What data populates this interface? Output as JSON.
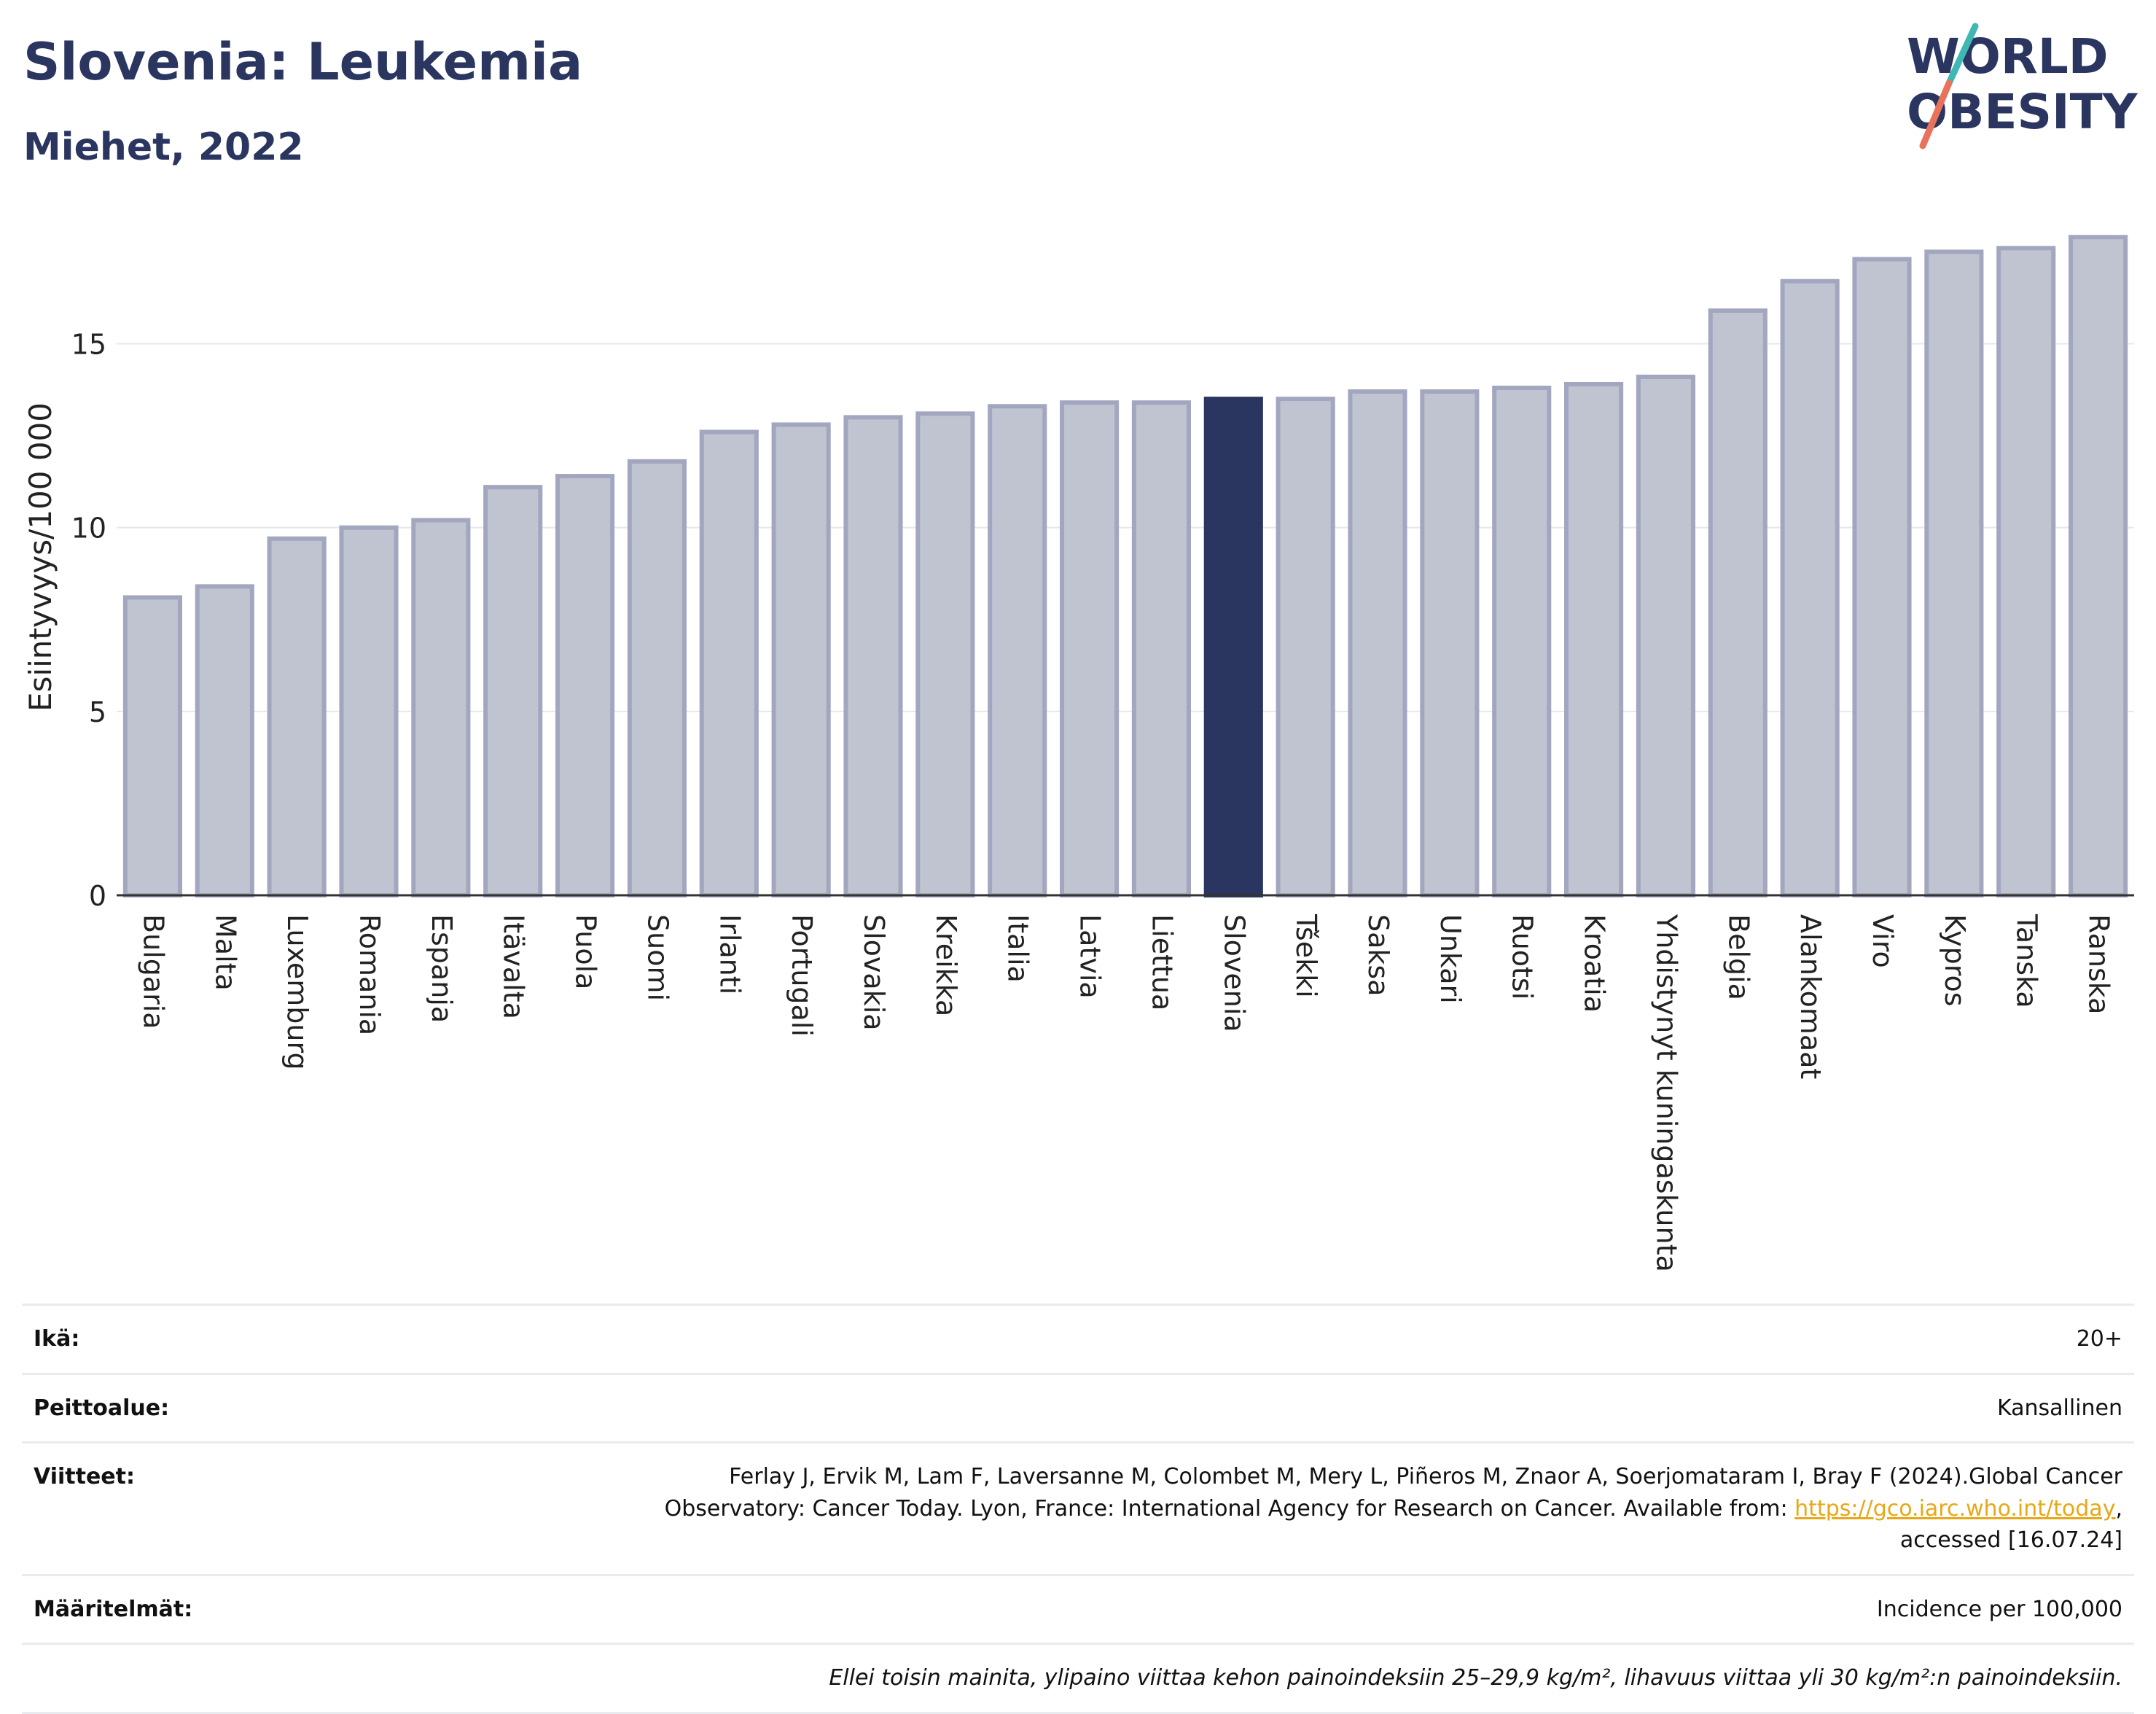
{
  "header": {
    "title": "Slovenia: Leukemia",
    "subtitle": "Miehet, 2022"
  },
  "logo": {
    "line1": "WORLD",
    "line2": "OBESITY",
    "colors": {
      "text": "#2a3560",
      "slash_teal": "#3fb8b4",
      "slash_coral": "#e8735a"
    }
  },
  "chart_data": {
    "type": "bar",
    "title": "Slovenia: Leukemia",
    "subtitle": "Miehet, 2022",
    "xlabel": "",
    "ylabel": "Esiintyvyys/100 000",
    "ylim": [
      0,
      18.4
    ],
    "yticks": [
      0,
      5,
      10,
      15
    ],
    "grid": true,
    "legend": "none",
    "highlight": "Slovenia",
    "colors": {
      "bar": "#c0c3d0",
      "bar_edge": "#a2a7bf",
      "highlight": "#2a3560"
    },
    "categories": [
      "Bulgaria",
      "Malta",
      "Luxemburg",
      "Romania",
      "Espanja",
      "Itävalta",
      "Puola",
      "Suomi",
      "Irlanti",
      "Portugali",
      "Slovakia",
      "Kreikka",
      "Italia",
      "Latvia",
      "Liettua",
      "Slovenia",
      "Tšekki",
      "Saksa",
      "Unkari",
      "Ruotsi",
      "Kroatia",
      "Yhdistynyt kuningaskunta",
      "Belgia",
      "Alankomaat",
      "Viro",
      "Kypros",
      "Tanska",
      "Ranska"
    ],
    "values": [
      8.1,
      8.4,
      9.7,
      10.0,
      10.2,
      11.1,
      11.4,
      11.8,
      12.6,
      12.8,
      13.0,
      13.1,
      13.3,
      13.4,
      13.4,
      13.5,
      13.5,
      13.7,
      13.7,
      13.8,
      13.9,
      14.1,
      15.9,
      16.7,
      17.3,
      17.5,
      17.6,
      17.9
    ]
  },
  "info": {
    "age_label": "Ikä:",
    "age_value": "20+",
    "coverage_label": "Peittoalue:",
    "coverage_value": "Kansallinen",
    "refs_label": "Viitteet:",
    "refs_line1": "Ferlay J, Ervik M, Lam F, Laversanne M, Colombet M, Mery L, Piñeros M, Znaor A, Soerjomataram I, Bray F (2024).Global Cancer",
    "refs_line2": "Observatory: Cancer Today. Lyon, France: International Agency for Research on Cancer. Available from: ",
    "refs_link": "https://gco.iarc.who.int/today",
    "refs_line2_end": ",",
    "refs_line3": "accessed [16.07.24]",
    "definitions_label": "Määritelmät:",
    "definitions_value": "Incidence per 100,000",
    "note": "Ellei toisin mainita, ylipaino viittaa kehon painoindeksiin 25–29,9 kg/m², lihavuus viittaa yli 30 kg/m²:n painoindeksiin."
  }
}
